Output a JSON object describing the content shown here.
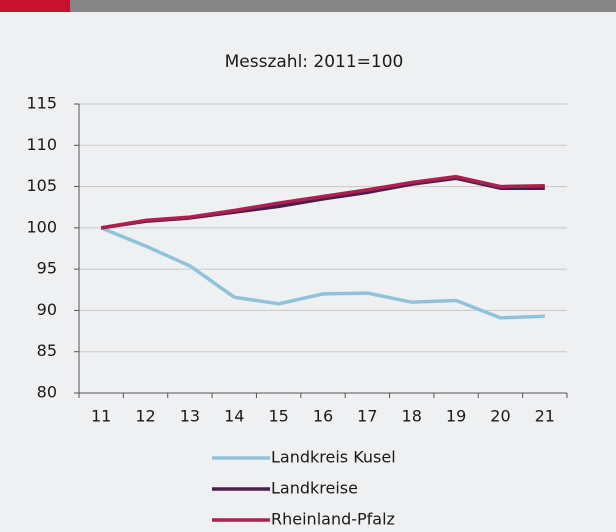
{
  "chart_data": {
    "type": "line",
    "title": "Messzahl: 2011=100",
    "categories": [
      "11",
      "12",
      "13",
      "14",
      "15",
      "16",
      "17",
      "18",
      "19",
      "20",
      "21"
    ],
    "series": [
      {
        "name": "Landkreis Kusel",
        "color": "#8fc3dc",
        "values": [
          100,
          97.8,
          95.4,
          91.6,
          90.8,
          92.0,
          92.1,
          91.0,
          91.2,
          89.1,
          89.3
        ]
      },
      {
        "name": "Landkreise",
        "color": "#4b1c4f",
        "values": [
          100,
          100.8,
          101.2,
          101.9,
          102.6,
          103.5,
          104.3,
          105.3,
          106.0,
          104.8,
          104.8
        ]
      },
      {
        "name": "Rheinland-Pfalz",
        "color": "#b01f4b",
        "values": [
          100,
          100.9,
          101.3,
          102.1,
          103.0,
          103.8,
          104.6,
          105.5,
          106.2,
          105.0,
          105.1
        ]
      }
    ],
    "ylim": [
      80,
      115
    ],
    "yticks": [
      80,
      85,
      90,
      95,
      100,
      105,
      110,
      115
    ],
    "grid": true
  }
}
